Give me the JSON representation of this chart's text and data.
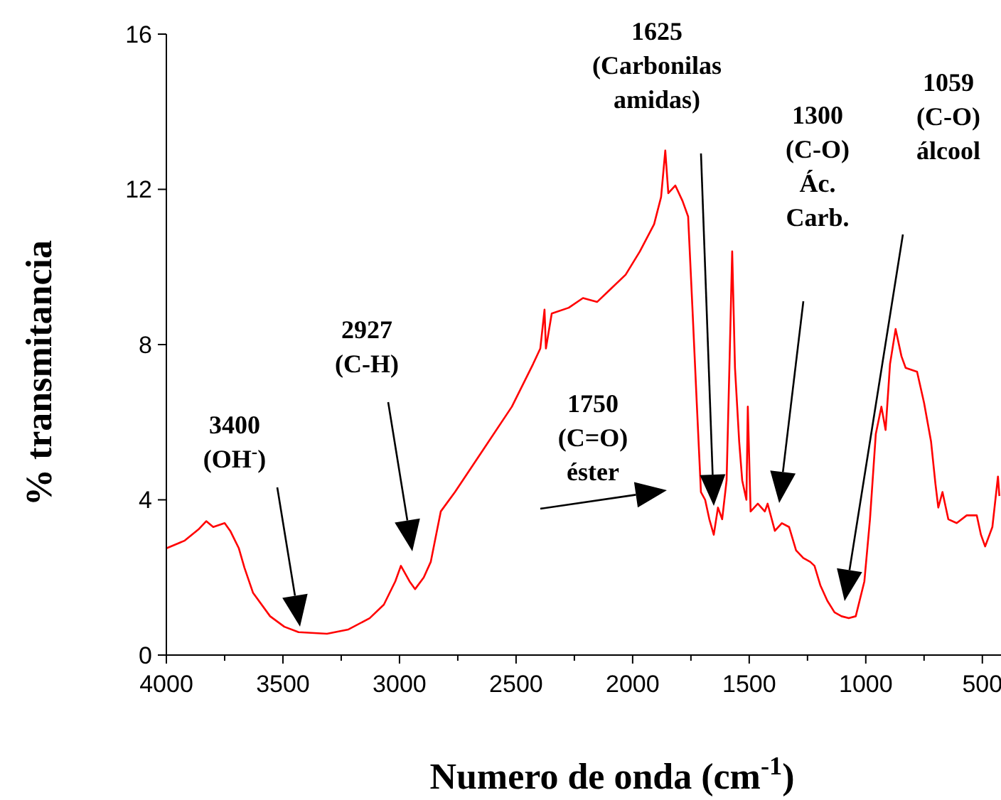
{
  "chart_data": {
    "type": "line",
    "xlabel": "Numero de onda (cm$^{-1}$)",
    "ylabel": "% transmitancia",
    "xlim": [
      4000,
      420
    ],
    "ylim": [
      0,
      16
    ],
    "xticks": [
      4000,
      {
        "value": 3750,
        "label": null
      },
      3500,
      {
        "value": 3250,
        "label": null
      },
      3000,
      {
        "value": 2750,
        "label": null
      },
      2500,
      {
        "value": 2250,
        "label": null
      },
      2000,
      {
        "value": 1750,
        "label": null
      },
      1500,
      {
        "value": 1250,
        "label": null
      },
      1000,
      {
        "value": 750,
        "label": null
      },
      500
    ],
    "yticks": [
      0,
      4,
      8,
      12,
      16
    ],
    "grid": false,
    "legend": false,
    "marker": "none",
    "line_style": "solid",
    "series": [
      {
        "color": "#ff0000",
        "x": [
          4000,
          3921,
          3860,
          3829,
          3799,
          3750,
          3726,
          3689,
          3665,
          3628,
          3555,
          3494,
          3433,
          3311,
          3219,
          3128,
          3067,
          3018,
          2994,
          2957,
          2933,
          2896,
          2866,
          2823,
          2762,
          2640,
          2518,
          2427,
          2396,
          2378,
          2372,
          2347,
          2274,
          2213,
          2152,
          2091,
          2030,
          1969,
          1908,
          1878,
          1860,
          1847,
          1817,
          1786,
          1762,
          1744,
          1725,
          1707,
          1689,
          1671,
          1652,
          1634,
          1616,
          1597,
          1585,
          1573,
          1561,
          1543,
          1530,
          1512,
          1506,
          1494,
          1463,
          1433,
          1421,
          1390,
          1360,
          1329,
          1299,
          1268,
          1238,
          1220,
          1195,
          1165,
          1134,
          1104,
          1073,
          1043,
          1006,
          982,
          957,
          933,
          915,
          896,
          872,
          847,
          829,
          780,
          750,
          720,
          701,
          689,
          671,
          646,
          610,
          567,
          524,
          506,
          488,
          457,
          433,
          427
        ],
        "values": [
          2.75,
          2.95,
          3.25,
          3.45,
          3.3,
          3.4,
          3.2,
          2.75,
          2.25,
          1.6,
          1.0,
          0.73,
          0.59,
          0.55,
          0.66,
          0.95,
          1.3,
          1.9,
          2.3,
          1.9,
          1.7,
          2.0,
          2.4,
          3.7,
          4.2,
          5.3,
          6.4,
          7.5,
          7.9,
          8.9,
          7.9,
          8.8,
          8.95,
          9.2,
          9.1,
          9.45,
          9.8,
          10.4,
          11.1,
          11.8,
          13.0,
          11.9,
          12.1,
          11.7,
          11.3,
          9.0,
          6.5,
          4.2,
          4.0,
          3.5,
          3.1,
          3.8,
          3.5,
          4.5,
          7.4,
          10.4,
          7.4,
          5.5,
          4.5,
          4.0,
          6.4,
          3.7,
          3.9,
          3.7,
          3.9,
          3.2,
          3.4,
          3.3,
          2.7,
          2.5,
          2.4,
          2.3,
          1.8,
          1.4,
          1.1,
          1.0,
          0.95,
          1.0,
          1.9,
          3.5,
          5.7,
          6.4,
          5.8,
          7.5,
          8.4,
          7.7,
          7.4,
          7.3,
          6.5,
          5.5,
          4.4,
          3.8,
          4.2,
          3.5,
          3.4,
          3.6,
          3.6,
          3.1,
          2.8,
          3.3,
          4.6,
          4.1
        ]
      }
    ],
    "annotations": [
      "3400\n(OH$^{-}$)",
      "2927\n(C-H)",
      "1750\n(C=O)\néster",
      "1625\n(Carbonilas\namidas)",
      "1300\n(C-O)\nÁc.\nCarb.",
      "1059\n(C-O)\nálcool"
    ]
  }
}
